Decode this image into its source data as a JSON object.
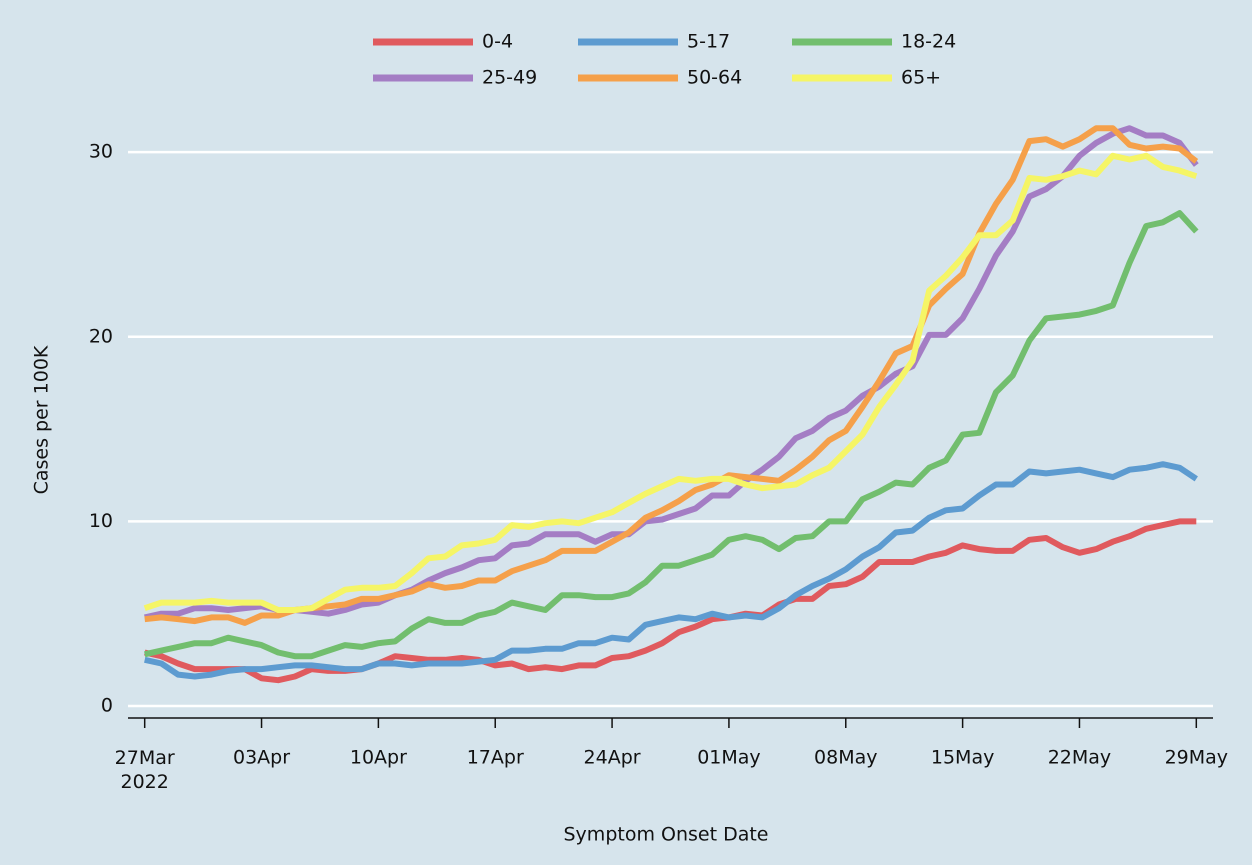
{
  "chart_data": {
    "type": "line",
    "x_label": "Symptom Onset Date",
    "y_label": "Cases per 100K",
    "x": [
      "2022-03-27",
      "2022-03-28",
      "2022-03-29",
      "2022-03-30",
      "2022-03-31",
      "2022-04-01",
      "2022-04-02",
      "2022-04-03",
      "2022-04-04",
      "2022-04-05",
      "2022-04-06",
      "2022-04-07",
      "2022-04-08",
      "2022-04-09",
      "2022-04-10",
      "2022-04-11",
      "2022-04-12",
      "2022-04-13",
      "2022-04-14",
      "2022-04-15",
      "2022-04-16",
      "2022-04-17",
      "2022-04-18",
      "2022-04-19",
      "2022-04-20",
      "2022-04-21",
      "2022-04-22",
      "2022-04-23",
      "2022-04-24",
      "2022-04-25",
      "2022-04-26",
      "2022-04-27",
      "2022-04-28",
      "2022-04-29",
      "2022-04-30",
      "2022-05-01",
      "2022-05-02",
      "2022-05-03",
      "2022-05-04",
      "2022-05-05",
      "2022-05-06",
      "2022-05-07",
      "2022-05-08",
      "2022-05-09",
      "2022-05-10",
      "2022-05-11",
      "2022-05-12",
      "2022-05-13",
      "2022-05-14",
      "2022-05-15",
      "2022-05-16",
      "2022-05-17",
      "2022-05-18",
      "2022-05-19",
      "2022-05-20",
      "2022-05-21",
      "2022-05-22",
      "2022-05-23",
      "2022-05-24",
      "2022-05-25",
      "2022-05-26",
      "2022-05-27",
      "2022-05-28",
      "2022-05-29"
    ],
    "xlim": [
      "2022-03-26",
      "2022-05-30"
    ],
    "xticks": [
      {
        "value": "2022-03-27",
        "label": "27Mar\n2022"
      },
      {
        "value": "2022-04-03",
        "label": "03Apr"
      },
      {
        "value": "2022-04-10",
        "label": "10Apr"
      },
      {
        "value": "2022-04-17",
        "label": "17Apr"
      },
      {
        "value": "2022-04-24",
        "label": "24Apr"
      },
      {
        "value": "2022-05-01",
        "label": "01May"
      },
      {
        "value": "2022-05-08",
        "label": "08May"
      },
      {
        "value": "2022-05-15",
        "label": "15May"
      },
      {
        "value": "2022-05-22",
        "label": "22May"
      },
      {
        "value": "2022-05-29",
        "label": "29May"
      }
    ],
    "ylim": [
      -0.65,
      32.5
    ],
    "yticks": [
      0,
      10,
      20,
      30
    ],
    "grid": true,
    "series": [
      {
        "name": "0-4",
        "color": "#e05a5e",
        "values": [
          2.9,
          2.7,
          2.3,
          2.0,
          2.0,
          2.0,
          2.0,
          1.5,
          1.4,
          1.6,
          2.0,
          1.9,
          1.9,
          2.0,
          2.3,
          2.7,
          2.6,
          2.5,
          2.5,
          2.6,
          2.5,
          2.2,
          2.3,
          2.0,
          2.1,
          2.0,
          2.2,
          2.2,
          2.6,
          2.7,
          3.0,
          3.4,
          4.0,
          4.3,
          4.7,
          4.8,
          5.0,
          4.9,
          5.5,
          5.8,
          5.8,
          6.5,
          6.6,
          7.0,
          7.8,
          7.8,
          7.8,
          8.1,
          8.3,
          8.7,
          8.5,
          8.4,
          8.4,
          9.0,
          9.1,
          8.6,
          8.3,
          8.5,
          8.9,
          9.2,
          9.6,
          9.8,
          10.0,
          10.0
        ]
      },
      {
        "name": "5-17",
        "color": "#5d9bd0",
        "values": [
          2.5,
          2.3,
          1.7,
          1.6,
          1.7,
          1.9,
          2.0,
          2.0,
          2.1,
          2.2,
          2.2,
          2.1,
          2.0,
          2.0,
          2.3,
          2.3,
          2.2,
          2.3,
          2.3,
          2.3,
          2.4,
          2.5,
          3.0,
          3.0,
          3.1,
          3.1,
          3.4,
          3.4,
          3.7,
          3.6,
          4.4,
          4.6,
          4.8,
          4.7,
          5.0,
          4.8,
          4.9,
          4.8,
          5.3,
          6.0,
          6.5,
          6.9,
          7.4,
          8.1,
          8.6,
          9.4,
          9.5,
          10.2,
          10.6,
          10.7,
          11.4,
          12.0,
          12.0,
          12.7,
          12.6,
          12.7,
          12.8,
          12.6,
          12.4,
          12.8,
          12.9,
          13.1,
          12.9,
          12.3
        ]
      },
      {
        "name": "18-24",
        "color": "#72be6e",
        "values": [
          2.8,
          3.0,
          3.2,
          3.4,
          3.4,
          3.7,
          3.5,
          3.3,
          2.9,
          2.7,
          2.7,
          3.0,
          3.3,
          3.2,
          3.4,
          3.5,
          4.2,
          4.7,
          4.5,
          4.5,
          4.9,
          5.1,
          5.6,
          5.4,
          5.2,
          6.0,
          6.0,
          5.9,
          5.9,
          6.1,
          6.7,
          7.6,
          7.6,
          7.9,
          8.2,
          9.0,
          9.2,
          9.0,
          8.5,
          9.1,
          9.2,
          10.0,
          10.0,
          11.2,
          11.6,
          12.1,
          12.0,
          12.9,
          13.3,
          14.7,
          14.8,
          17.0,
          17.9,
          19.8,
          21.0,
          21.1,
          21.2,
          21.4,
          21.7,
          24.0,
          26.0,
          26.2,
          26.7,
          25.7
        ]
      },
      {
        "name": "25-49",
        "color": "#a47dc4",
        "values": [
          4.8,
          5.0,
          5.0,
          5.3,
          5.3,
          5.2,
          5.3,
          5.4,
          5.2,
          5.2,
          5.1,
          5.0,
          5.2,
          5.5,
          5.6,
          6.0,
          6.3,
          6.8,
          7.2,
          7.5,
          7.9,
          8.0,
          8.7,
          8.8,
          9.3,
          9.3,
          9.3,
          8.9,
          9.3,
          9.3,
          10.0,
          10.1,
          10.4,
          10.7,
          11.4,
          11.4,
          12.2,
          12.8,
          13.5,
          14.5,
          14.9,
          15.6,
          16.0,
          16.8,
          17.3,
          18.0,
          18.4,
          20.1,
          20.1,
          21.0,
          22.6,
          24.4,
          25.7,
          27.6,
          28.0,
          28.7,
          29.8,
          30.5,
          31.0,
          31.3,
          30.9,
          30.9,
          30.5,
          29.3
        ]
      },
      {
        "name": "50-64",
        "color": "#f5a04a",
        "values": [
          4.7,
          4.8,
          4.7,
          4.6,
          4.8,
          4.8,
          4.5,
          4.9,
          4.9,
          5.2,
          5.3,
          5.4,
          5.5,
          5.8,
          5.8,
          6.0,
          6.2,
          6.6,
          6.4,
          6.5,
          6.8,
          6.8,
          7.3,
          7.6,
          7.9,
          8.4,
          8.4,
          8.4,
          8.9,
          9.4,
          10.2,
          10.6,
          11.1,
          11.7,
          12.0,
          12.5,
          12.4,
          12.3,
          12.2,
          12.8,
          13.5,
          14.4,
          14.9,
          16.2,
          17.6,
          19.1,
          19.5,
          21.7,
          22.6,
          23.4,
          25.6,
          27.2,
          28.5,
          30.6,
          30.7,
          30.3,
          30.7,
          31.3,
          31.3,
          30.4,
          30.2,
          30.3,
          30.2,
          29.5
        ]
      },
      {
        "name": "65+",
        "color": "#f5f566",
        "values": [
          5.3,
          5.6,
          5.6,
          5.6,
          5.7,
          5.6,
          5.6,
          5.6,
          5.2,
          5.2,
          5.3,
          5.8,
          6.3,
          6.4,
          6.4,
          6.5,
          7.2,
          8.0,
          8.1,
          8.7,
          8.8,
          9.0,
          9.8,
          9.7,
          9.9,
          10.0,
          9.9,
          10.2,
          10.5,
          11.0,
          11.5,
          11.9,
          12.3,
          12.2,
          12.3,
          12.3,
          12.0,
          11.8,
          11.9,
          12.0,
          12.5,
          12.9,
          13.8,
          14.7,
          16.2,
          17.4,
          18.7,
          22.5,
          23.3,
          24.3,
          25.5,
          25.5,
          26.3,
          28.6,
          28.5,
          28.7,
          29.0,
          28.8,
          29.8,
          29.6,
          29.8,
          29.2,
          29.0,
          28.7
        ]
      }
    ]
  }
}
